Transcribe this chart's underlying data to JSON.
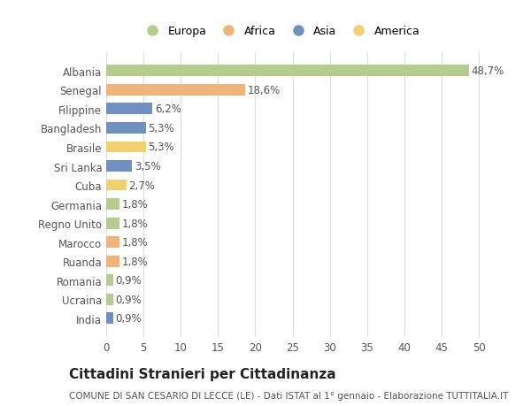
{
  "countries": [
    "Albania",
    "Senegal",
    "Filippine",
    "Bangladesh",
    "Brasile",
    "Sri Lanka",
    "Cuba",
    "Germania",
    "Regno Unito",
    "Marocco",
    "Ruanda",
    "Romania",
    "Ucraina",
    "India"
  ],
  "values": [
    48.7,
    18.6,
    6.2,
    5.3,
    5.3,
    3.5,
    2.7,
    1.8,
    1.8,
    1.8,
    1.8,
    0.9,
    0.9,
    0.9
  ],
  "labels": [
    "48,7%",
    "18,6%",
    "6,2%",
    "5,3%",
    "5,3%",
    "3,5%",
    "2,7%",
    "1,8%",
    "1,8%",
    "1,8%",
    "1,8%",
    "0,9%",
    "0,9%",
    "0,9%"
  ],
  "continents": [
    "Europa",
    "Africa",
    "Asia",
    "Asia",
    "America",
    "Asia",
    "America",
    "Europa",
    "Europa",
    "Africa",
    "Africa",
    "Europa",
    "Europa",
    "Asia"
  ],
  "colors": {
    "Europa": "#b5cc8e",
    "Africa": "#f0b47a",
    "Asia": "#7090c0",
    "America": "#f0d070"
  },
  "title": "Cittadini Stranieri per Cittadinanza",
  "subtitle": "COMUNE DI SAN CESARIO DI LECCE (LE) - Dati ISTAT al 1° gennaio - Elaborazione TUTTITALIA.IT",
  "xlim": [
    0,
    52
  ],
  "xticks": [
    0,
    5,
    10,
    15,
    20,
    25,
    30,
    35,
    40,
    45,
    50
  ],
  "background_color": "#ffffff",
  "grid_color": "#dddddd",
  "bar_height": 0.6,
  "label_fontsize": 8.5,
  "tick_fontsize": 8.5,
  "title_fontsize": 11,
  "subtitle_fontsize": 7.5
}
